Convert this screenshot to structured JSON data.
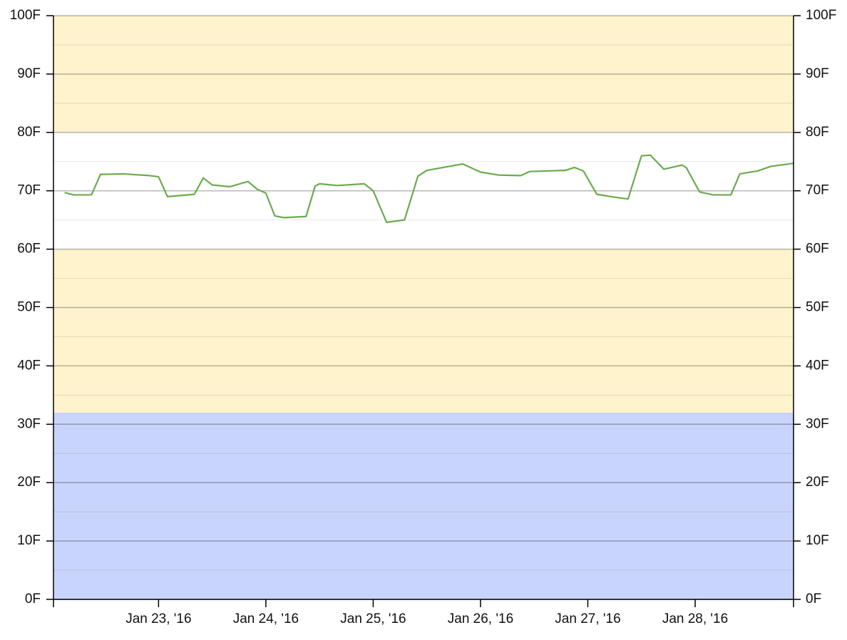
{
  "chart_data": {
    "type": "line",
    "x": [
      "2016-01-22 03:00",
      "2016-01-22 05:00",
      "2016-01-22 09:00",
      "2016-01-22 11:00",
      "2016-01-22 16:00",
      "2016-01-22 22:00",
      "2016-01-23 00:00",
      "2016-01-23 02:00",
      "2016-01-23 08:00",
      "2016-01-23 10:00",
      "2016-01-23 12:00",
      "2016-01-23 16:00",
      "2016-01-23 20:00",
      "2016-01-23 22:00",
      "2016-01-24 00:00",
      "2016-01-24 02:00",
      "2016-01-24 04:00",
      "2016-01-24 09:00",
      "2016-01-24 11:00",
      "2016-01-24 12:00",
      "2016-01-24 16:00",
      "2016-01-24 22:00",
      "2016-01-25 00:00",
      "2016-01-25 03:00",
      "2016-01-25 07:00",
      "2016-01-25 10:00",
      "2016-01-25 12:00",
      "2016-01-25 20:00",
      "2016-01-26 00:00",
      "2016-01-26 04:00",
      "2016-01-26 09:00",
      "2016-01-26 11:00",
      "2016-01-26 19:00",
      "2016-01-26 21:00",
      "2016-01-26 23:00",
      "2016-01-27 02:00",
      "2016-01-27 06:00",
      "2016-01-27 09:00",
      "2016-01-27 12:00",
      "2016-01-27 14:00",
      "2016-01-27 17:00",
      "2016-01-27 21:00",
      "2016-01-27 22:00",
      "2016-01-28 01:00",
      "2016-01-28 04:00",
      "2016-01-28 08:00",
      "2016-01-28 10:00",
      "2016-01-28 14:00",
      "2016-01-28 17:00",
      "2016-01-28 22:00"
    ],
    "series": [
      {
        "color": "#6aab4e",
        "values": [
          69.7,
          69.3,
          69.3,
          72.8,
          72.9,
          72.6,
          72.4,
          69.0,
          69.4,
          72.2,
          71.0,
          70.7,
          71.6,
          70.3,
          69.6,
          65.7,
          65.4,
          65.6,
          70.8,
          71.2,
          70.9,
          71.2,
          70.0,
          64.6,
          65.0,
          72.5,
          73.5,
          74.6,
          73.2,
          72.7,
          72.6,
          73.3,
          73.5,
          74.0,
          73.4,
          69.4,
          68.9,
          68.6,
          76.0,
          76.1,
          73.7,
          74.4,
          74.0,
          69.8,
          69.3,
          69.3,
          72.9,
          73.4,
          74.2,
          74.7
        ]
      }
    ],
    "xlim": [
      "2016-01-22 00:30",
      "2016-01-28 22:00"
    ],
    "xticks": [
      {
        "value": "2016-01-23 00:00",
        "label": "Jan 23, '16"
      },
      {
        "value": "2016-01-24 00:00",
        "label": "Jan 24, '16"
      },
      {
        "value": "2016-01-25 00:00",
        "label": "Jan 25, '16"
      },
      {
        "value": "2016-01-26 00:00",
        "label": "Jan 26, '16"
      },
      {
        "value": "2016-01-27 00:00",
        "label": "Jan 27, '16"
      },
      {
        "value": "2016-01-28 00:00",
        "label": "Jan 28, '16"
      }
    ],
    "ylim": [
      0,
      100
    ],
    "yticks": [
      {
        "value": 0,
        "label": "0F"
      },
      {
        "value": 10,
        "label": "10F"
      },
      {
        "value": 20,
        "label": "20F"
      },
      {
        "value": 30,
        "label": "30F"
      },
      {
        "value": 40,
        "label": "40F"
      },
      {
        "value": 50,
        "label": "50F"
      },
      {
        "value": 60,
        "label": "60F"
      },
      {
        "value": 70,
        "label": "70F"
      },
      {
        "value": 80,
        "label": "80F"
      },
      {
        "value": 90,
        "label": "90F"
      },
      {
        "value": 100,
        "label": "100F"
      }
    ],
    "minor_yticks": [
      5,
      15,
      25,
      35,
      45,
      55,
      65,
      75,
      85,
      95
    ],
    "bands": [
      {
        "from": 0,
        "to": 32,
        "color": "#c9d4fc"
      },
      {
        "from": 32,
        "to": 60,
        "color": "#fef3cc"
      },
      {
        "from": 60,
        "to": 80,
        "color": "#ffffff"
      },
      {
        "from": 80,
        "to": 100,
        "color": "#fef3cc"
      }
    ],
    "grid": true
  }
}
